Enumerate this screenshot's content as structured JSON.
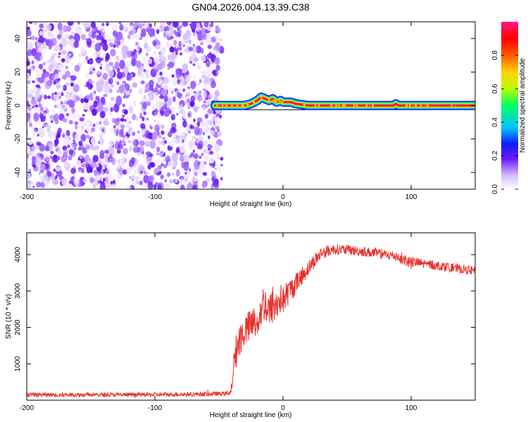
{
  "chart_data": [
    {
      "type": "heatmap",
      "title": "GN04.2026.004.13.39.C38",
      "xlabel": "Height of straight line (km)",
      "ylabel": "Frequency (Hz)",
      "xlim": [
        -200,
        150
      ],
      "ylim": [
        -50,
        50
      ],
      "xticks": [
        -200,
        -100,
        0,
        100
      ],
      "yticks": [
        -40,
        -20,
        0,
        20,
        40
      ],
      "noise_region_x": [
        -200,
        -50
      ],
      "signal_track": {
        "x": [
          -53,
          -45,
          -38,
          -30,
          -25,
          -20,
          -17,
          -14,
          -11,
          -8,
          -5,
          -2,
          0,
          3,
          6,
          10,
          20,
          40,
          60,
          80,
          86,
          88,
          90,
          92,
          100,
          120,
          150
        ],
        "freq": [
          0,
          0,
          0,
          0,
          1,
          3,
          5,
          4,
          3,
          4,
          2,
          3,
          2,
          2,
          2,
          1,
          0,
          0,
          0,
          0,
          0,
          1,
          0,
          0,
          0,
          0,
          0
        ]
      },
      "colorbar": {
        "label": "Normalized spectral amplitude",
        "range": [
          0,
          1
        ],
        "ticks": [
          "0.0",
          "0.2",
          "0.4",
          "0.6",
          "0.8"
        ]
      }
    },
    {
      "type": "line",
      "xlabel": "Height of straight line (km)",
      "ylabel": "SNR (10 * v/v)",
      "xlim": [
        -200,
        150
      ],
      "ylim": [
        0,
        4600
      ],
      "xticks": [
        -200,
        -100,
        0,
        100
      ],
      "yticks": [
        1000,
        2000,
        3000,
        4000
      ],
      "series_color": "#e8302c",
      "series": [
        {
          "name": "SNR",
          "x": [
            -200,
            -150,
            -100,
            -60,
            -45,
            -41,
            -40,
            -38,
            -35,
            -30,
            -20,
            -15,
            -10,
            -8,
            -5,
            -3,
            0,
            5,
            10,
            20,
            30,
            40,
            60,
            80,
            90,
            95,
            100,
            120,
            150
          ],
          "values": [
            150,
            150,
            150,
            170,
            180,
            220,
            400,
            1100,
            1600,
            1900,
            2200,
            2700,
            2400,
            2650,
            2550,
            2800,
            2750,
            3000,
            3200,
            3650,
            4050,
            4150,
            4100,
            4000,
            3950,
            3850,
            3800,
            3700,
            3550
          ],
          "noise_amplitude": [
            60,
            60,
            60,
            60,
            60,
            80,
            150,
            450,
            500,
            450,
            500,
            550,
            550,
            550,
            500,
            450,
            400,
            350,
            300,
            220,
            180,
            150,
            140,
            140,
            160,
            200,
            150,
            130,
            120
          ]
        }
      ]
    }
  ]
}
